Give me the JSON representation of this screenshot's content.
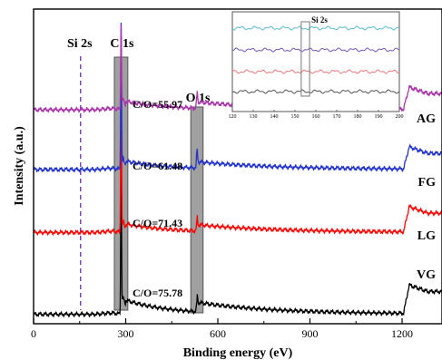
{
  "chart_data": {
    "type": "line",
    "xlabel": "Binding energy (eV)",
    "ylabel": "Intensity (a.u.)",
    "xlim": [
      0,
      1330
    ],
    "xticks": [
      0,
      300,
      600,
      900,
      1200
    ],
    "grid": false,
    "series": [
      {
        "name": "VG",
        "ratio_label": "C/O=75.78",
        "color": "#000000",
        "baseline": 0.03,
        "c1s": 0.5,
        "o1s": 0.03,
        "after": 0.05,
        "step": 0.09,
        "o1s_tail": 0.03
      },
      {
        "name": "LG",
        "ratio_label": "C/O=71.43",
        "color": "#ff0000",
        "baseline": 0.29,
        "c1s": 0.56,
        "o1s": 0.03,
        "after": 0.03,
        "step": 0.08,
        "o1s_tail": 0.02
      },
      {
        "name": "FG",
        "ratio_label": "C/O=61.48",
        "color": "#2233cc",
        "baseline": 0.49,
        "c1s": 0.47,
        "o1s": 0.05,
        "after": 0.03,
        "step": 0.07,
        "o1s_tail": 0.02
      },
      {
        "name": "AG",
        "ratio_label": "C/O=55.97",
        "color": "#aa33aa",
        "baseline": 0.68,
        "c1s": 0.27,
        "o1s": 0.04,
        "after": 0.03,
        "step": 0.07,
        "o1s_tail": 0.02
      }
    ],
    "peak_markers": [
      {
        "label": "Si 2s",
        "energy": 153,
        "style": "dashed-line"
      },
      {
        "label": "C 1s",
        "energy": 285,
        "style": "gray-band"
      },
      {
        "label": "O 1s",
        "energy": 532,
        "style": "gray-band"
      }
    ],
    "inset": {
      "xlim": [
        120,
        200
      ],
      "xticks": [
        120,
        130,
        140,
        150,
        160,
        170,
        180,
        190,
        200
      ],
      "marker_label": "Si 2s",
      "marker_range": [
        153,
        157
      ],
      "series_colors": [
        "#5bbccf",
        "#7a56b8",
        "#e57a7a",
        "#555555"
      ]
    }
  }
}
